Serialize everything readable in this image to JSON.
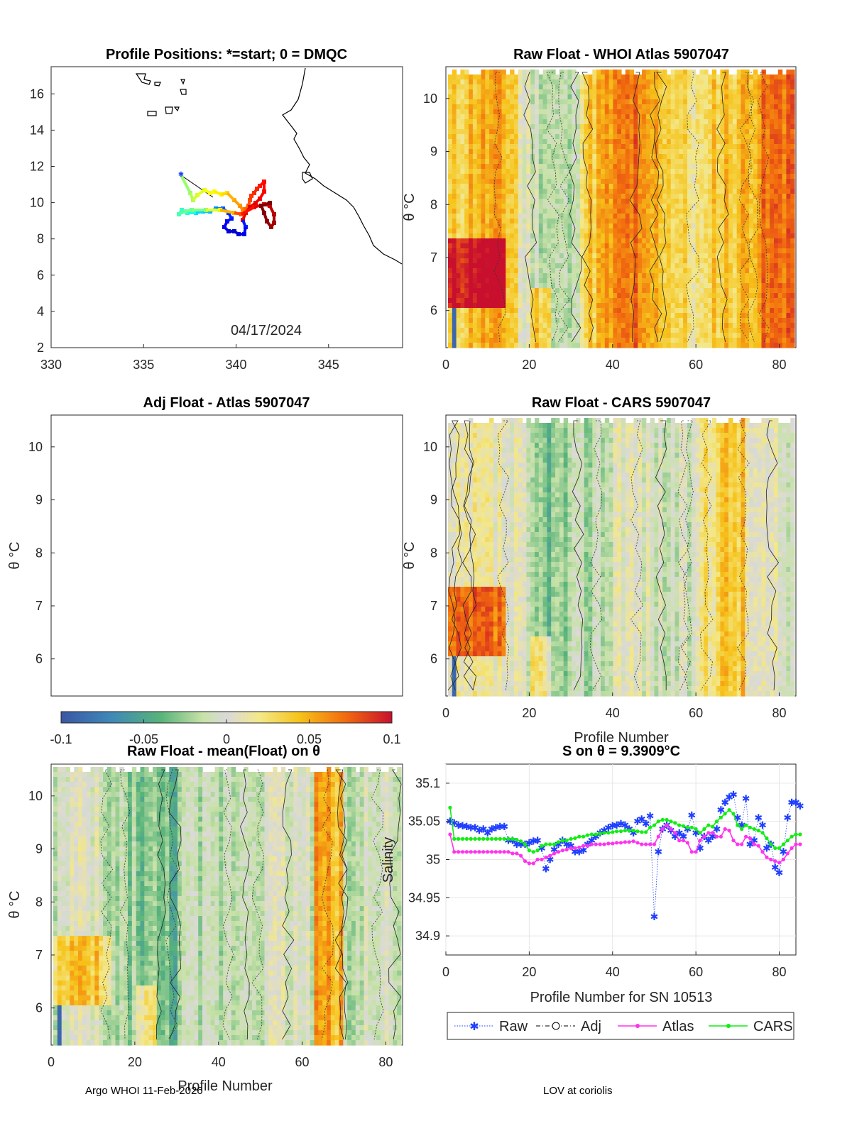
{
  "figure": {
    "footer_left": "Argo WHOI 11-Feb-2026",
    "footer_right": "LOV at coriolis"
  },
  "map": {
    "title": "Profile Positions: *=start; 0 = DMQC",
    "date": "04/17/2024",
    "x_ticks": [
      "330",
      "335",
      "340",
      "345"
    ],
    "y_ticks": [
      "2",
      "4",
      "6",
      "8",
      "10",
      "12",
      "14",
      "16"
    ]
  },
  "panels": {
    "p1": {
      "title": "Raw Float - WHOI Atlas  5907047",
      "ylabel": "θ °C"
    },
    "p2": {
      "title": "Adj Float - Atlas  5907047",
      "ylabel": "θ °C"
    },
    "p3": {
      "title": "Raw Float - CARS  5907047",
      "ylabel": "θ °C",
      "xlabel": "Profile Number"
    },
    "p4": {
      "title": "Raw Float - mean(Float) on θ",
      "ylabel": "θ °C",
      "xlabel": "Profile Number"
    },
    "theta_ticks": [
      "6",
      "7",
      "8",
      "9",
      "10"
    ],
    "profile_ticks": [
      "0",
      "20",
      "40",
      "60",
      "80"
    ]
  },
  "colorbar": {
    "ticks": [
      "-0.1",
      "-0.05",
      "0",
      "0.05",
      "0.1"
    ],
    "range": [
      -0.1,
      0.1
    ]
  },
  "chart_data": {
    "type": "line",
    "title": "S on θ = 9.3909°C",
    "xlabel": "Profile Number for SN 10513",
    "ylabel": "Salinity",
    "xlim": [
      0,
      84
    ],
    "ylim": [
      34.875,
      35.125
    ],
    "x_ticks": [
      "0",
      "20",
      "40",
      "60",
      "80"
    ],
    "y_ticks": [
      "34.9",
      "34.95",
      "35",
      "35.05",
      "35.1"
    ],
    "legend": [
      "Raw",
      "Adj",
      "Atlas",
      "CARS"
    ],
    "series": [
      {
        "name": "Raw",
        "color": "#1f3fff",
        "values": [
          35.05,
          35.048,
          35.045,
          35.044,
          35.043,
          35.042,
          35.042,
          35.038,
          35.04,
          35.035,
          35.04,
          35.042,
          35.043,
          35.043,
          35.025,
          35.025,
          35.02,
          35.02,
          35.02,
          35.022,
          35.024,
          35.025,
          35.015,
          34.988,
          35.0,
          35.013,
          35.02,
          35.025,
          35.02,
          35.018,
          35.01,
          35.01,
          35.012,
          35.02,
          35.025,
          35.03,
          35.035,
          35.038,
          35.042,
          35.044,
          35.045,
          35.047,
          35.045,
          35.04,
          35.035,
          35.05,
          35.053,
          35.047,
          35.057,
          34.925,
          35.01,
          35.04,
          35.045,
          35.038,
          35.03,
          35.035,
          35.03,
          35.04,
          35.058,
          35.035,
          35.015,
          35.03,
          35.025,
          35.03,
          35.04,
          35.065,
          35.075,
          35.082,
          35.085,
          35.055,
          35.045,
          35.08,
          35.02,
          35.025,
          35.055,
          35.045,
          35.015,
          35.02,
          34.99,
          34.983,
          35.01,
          35.055,
          35.075,
          35.075,
          35.07
        ]
      },
      {
        "name": "Atlas",
        "color": "#ff33ee",
        "values": [
          35.033,
          35.01,
          35.01,
          35.01,
          35.01,
          35.01,
          35.01,
          35.01,
          35.01,
          35.01,
          35.01,
          35.01,
          35.01,
          35.01,
          35.01,
          35.008,
          35.008,
          35.005,
          34.998,
          34.995,
          34.995,
          35.0,
          35.0,
          35.003,
          35.005,
          35.008,
          35.01,
          35.012,
          35.013,
          35.015,
          35.015,
          35.016,
          35.018,
          35.018,
          35.02,
          35.02,
          35.02,
          35.02,
          35.021,
          35.021,
          35.022,
          35.022,
          35.023,
          35.023,
          35.024,
          35.022,
          35.02,
          35.02,
          35.02,
          35.02,
          35.03,
          35.04,
          35.045,
          35.04,
          35.035,
          35.025,
          35.025,
          35.022,
          35.01,
          35.01,
          35.025,
          35.03,
          35.035,
          35.035,
          35.03,
          35.03,
          35.04,
          35.038,
          35.025,
          35.02,
          35.02,
          35.03,
          35.028,
          35.02,
          35.018,
          35.01,
          35.003,
          35.0,
          34.998,
          34.996,
          35.0,
          35.008,
          35.015,
          35.02,
          35.02
        ]
      },
      {
        "name": "CARS",
        "color": "#11ee11",
        "values": [
          35.068,
          35.027,
          35.027,
          35.027,
          35.027,
          35.027,
          35.027,
          35.027,
          35.027,
          35.027,
          35.027,
          35.027,
          35.027,
          35.027,
          35.027,
          35.027,
          35.026,
          35.024,
          35.02,
          35.012,
          35.01,
          35.012,
          35.018,
          35.02,
          35.02,
          35.02,
          35.023,
          35.025,
          35.025,
          35.027,
          35.028,
          35.03,
          35.03,
          35.032,
          35.033,
          35.033,
          35.034,
          35.035,
          35.035,
          35.036,
          35.037,
          35.037,
          35.038,
          35.038,
          35.038,
          35.037,
          35.036,
          35.036,
          35.042,
          35.045,
          35.05,
          35.052,
          35.052,
          35.05,
          35.048,
          35.045,
          35.044,
          35.042,
          35.042,
          35.04,
          35.035,
          35.04,
          35.045,
          35.043,
          35.05,
          35.055,
          35.06,
          35.065,
          35.06,
          35.045,
          35.04,
          35.045,
          35.042,
          35.04,
          35.038,
          35.035,
          35.028,
          35.02,
          35.015,
          35.015,
          35.02,
          35.025,
          35.03,
          35.033,
          35.033
        ]
      }
    ]
  }
}
